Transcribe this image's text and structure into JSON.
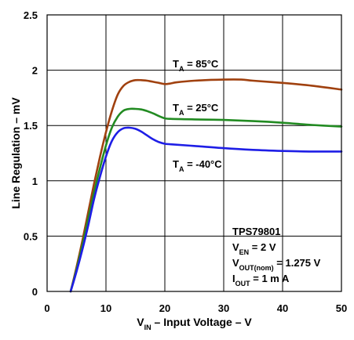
{
  "chart_data": {
    "type": "line",
    "xlabel": {
      "main": "V",
      "sub": "IN",
      "rest": " – Input Voltage – V"
    },
    "ylabel": "Line Regulation – mV",
    "xlim": [
      0,
      50
    ],
    "ylim": [
      0,
      2.5
    ],
    "xticks": [
      0,
      10,
      20,
      30,
      40,
      50
    ],
    "yticks": [
      0,
      0.5,
      1,
      1.5,
      2,
      2.5
    ],
    "xtick_labels": [
      "0",
      "10",
      "20",
      "30",
      "40",
      "50"
    ],
    "ytick_labels": [
      "0",
      "0.5",
      "1",
      "1.5",
      "2",
      "2.5"
    ],
    "grid": true,
    "series": [
      {
        "name": "T_A = 85°C",
        "label": {
          "main": "T",
          "sub": "A",
          "rest": " = 85°C"
        },
        "color": "#a0410f",
        "x": [
          4,
          5,
          6,
          7,
          8,
          9,
          10,
          11,
          12,
          13,
          14,
          15,
          16,
          17,
          18,
          19,
          20,
          21,
          22,
          25,
          30,
          33,
          35,
          40,
          45,
          50
        ],
        "y": [
          0,
          0.22,
          0.46,
          0.72,
          0.98,
          1.22,
          1.44,
          1.63,
          1.78,
          1.86,
          1.895,
          1.91,
          1.91,
          1.905,
          1.895,
          1.885,
          1.875,
          1.88,
          1.89,
          1.905,
          1.915,
          1.915,
          1.905,
          1.885,
          1.86,
          1.825
        ]
      },
      {
        "name": "T_A = 25°C",
        "label": {
          "main": "T",
          "sub": "A",
          "rest": " = 25°C"
        },
        "color": "#228b22",
        "x": [
          4,
          5,
          6,
          7,
          8,
          9,
          10,
          11,
          12,
          13,
          14,
          15,
          16,
          17,
          18,
          19,
          20,
          21,
          25,
          30,
          35,
          40,
          45,
          50
        ],
        "y": [
          0,
          0.2,
          0.42,
          0.66,
          0.9,
          1.12,
          1.32,
          1.48,
          1.58,
          1.635,
          1.65,
          1.65,
          1.645,
          1.63,
          1.61,
          1.585,
          1.565,
          1.56,
          1.555,
          1.55,
          1.54,
          1.525,
          1.505,
          1.49
        ]
      },
      {
        "name": "T_A = -40°C",
        "label": {
          "main": "T",
          "sub": "A",
          "rest": " = -40°C"
        },
        "color": "#1e1ee6",
        "x": [
          4,
          5,
          6,
          7,
          8,
          9,
          10,
          11,
          12,
          13,
          14,
          15,
          16,
          17,
          18,
          19,
          20,
          21,
          25,
          30,
          35,
          40,
          45,
          50
        ],
        "y": [
          0,
          0.18,
          0.38,
          0.6,
          0.84,
          1.04,
          1.22,
          1.36,
          1.44,
          1.475,
          1.48,
          1.47,
          1.445,
          1.41,
          1.375,
          1.35,
          1.335,
          1.33,
          1.315,
          1.295,
          1.28,
          1.27,
          1.265,
          1.265
        ]
      }
    ],
    "annotations": [
      {
        "parts": [
          {
            "t": "TPS79801"
          }
        ]
      },
      {
        "parts": [
          {
            "t": "V"
          },
          {
            "t": "EN",
            "sub": true
          },
          {
            "t": " = 2 V"
          }
        ]
      },
      {
        "parts": [
          {
            "t": "V"
          },
          {
            "t": "OUT(nom)",
            "sub": true
          },
          {
            "t": " = 1.275 V"
          }
        ]
      },
      {
        "parts": [
          {
            "t": "I"
          },
          {
            "t": "OUT",
            "sub": true
          },
          {
            "t": " = 1 m A"
          }
        ]
      }
    ]
  }
}
